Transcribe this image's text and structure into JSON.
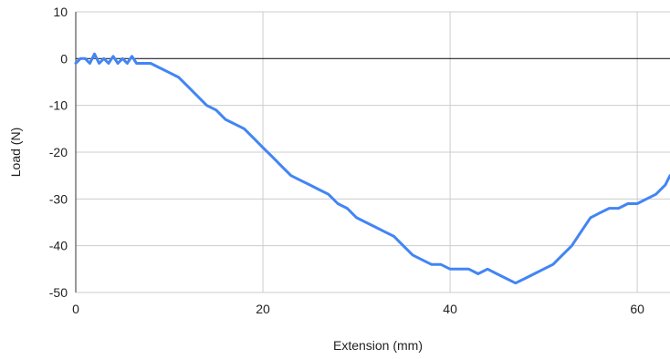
{
  "chart_data": {
    "type": "line",
    "title": "",
    "xlabel": "Extension (mm)",
    "ylabel": "Load (N)",
    "xlim": [
      0,
      63.5
    ],
    "ylim": [
      -50,
      10
    ],
    "x_ticks": [
      0,
      20,
      40,
      60
    ],
    "y_ticks": [
      10,
      0,
      -10,
      -20,
      -30,
      -40,
      -50
    ],
    "x_tick_labels": [
      "0",
      "20",
      "40",
      "60"
    ],
    "y_tick_labels": [
      "10",
      "0",
      "-10",
      "-20",
      "-30",
      "-40",
      "-50"
    ],
    "grid": true,
    "zero_line": true,
    "legend": "none",
    "series": [
      {
        "color": "#4285f4",
        "points": [
          [
            0,
            -1
          ],
          [
            0.5,
            0
          ],
          [
            1,
            0
          ],
          [
            1.5,
            -1
          ],
          [
            2,
            1
          ],
          [
            2.5,
            -1
          ],
          [
            3,
            0
          ],
          [
            3.5,
            -1
          ],
          [
            4,
            0.5
          ],
          [
            4.5,
            -1
          ],
          [
            5,
            0
          ],
          [
            5.5,
            -1
          ],
          [
            6,
            0.5
          ],
          [
            6.5,
            -1
          ],
          [
            7,
            -1
          ],
          [
            8,
            -1
          ],
          [
            9,
            -2
          ],
          [
            10,
            -3
          ],
          [
            11,
            -4
          ],
          [
            12,
            -6
          ],
          [
            13,
            -8
          ],
          [
            14,
            -10
          ],
          [
            15,
            -11
          ],
          [
            16,
            -13
          ],
          [
            17,
            -14
          ],
          [
            18,
            -15
          ],
          [
            19,
            -17
          ],
          [
            20,
            -19
          ],
          [
            21,
            -21
          ],
          [
            22,
            -23
          ],
          [
            23,
            -25
          ],
          [
            24,
            -26
          ],
          [
            25,
            -27
          ],
          [
            26,
            -28
          ],
          [
            27,
            -29
          ],
          [
            28,
            -31
          ],
          [
            29,
            -32
          ],
          [
            30,
            -34
          ],
          [
            31,
            -35
          ],
          [
            32,
            -36
          ],
          [
            33,
            -37
          ],
          [
            34,
            -38
          ],
          [
            35,
            -40
          ],
          [
            36,
            -42
          ],
          [
            37,
            -43
          ],
          [
            38,
            -44
          ],
          [
            39,
            -44
          ],
          [
            40,
            -45
          ],
          [
            41,
            -45
          ],
          [
            42,
            -45
          ],
          [
            43,
            -46
          ],
          [
            44,
            -45
          ],
          [
            45,
            -46
          ],
          [
            46,
            -47
          ],
          [
            47,
            -48
          ],
          [
            48,
            -47
          ],
          [
            49,
            -46
          ],
          [
            50,
            -45
          ],
          [
            51,
            -44
          ],
          [
            52,
            -42
          ],
          [
            53,
            -40
          ],
          [
            54,
            -37
          ],
          [
            55,
            -34
          ],
          [
            56,
            -33
          ],
          [
            57,
            -32
          ],
          [
            58,
            -32
          ],
          [
            59,
            -31
          ],
          [
            60,
            -31
          ],
          [
            61,
            -30
          ],
          [
            62,
            -29
          ],
          [
            63,
            -27
          ],
          [
            63.5,
            -25
          ]
        ]
      }
    ]
  }
}
